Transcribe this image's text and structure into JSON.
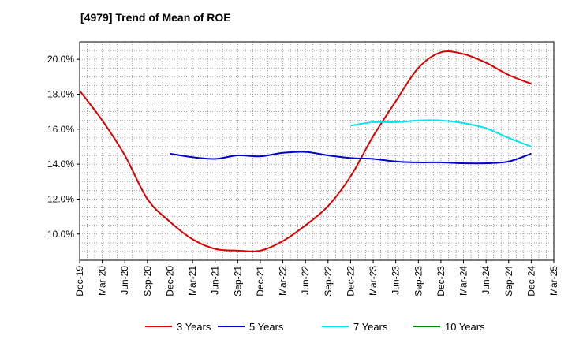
{
  "chart_data": {
    "type": "line",
    "title": "[4979]  Trend of Mean of ROE",
    "xlabel": "",
    "ylabel": "",
    "ylim": [
      8.5,
      21.0
    ],
    "yticks": [
      10.0,
      12.0,
      14.0,
      16.0,
      18.0,
      20.0
    ],
    "ytick_labels": [
      "10.0%",
      "12.0%",
      "14.0%",
      "16.0%",
      "18.0%",
      "20.0%"
    ],
    "x_tick_labels": [
      "Dec-19",
      "Mar-20",
      "Jun-20",
      "Sep-20",
      "Dec-20",
      "Mar-21",
      "Jun-21",
      "Sep-21",
      "Dec-21",
      "Mar-22",
      "Jun-22",
      "Sep-22",
      "Dec-22",
      "Mar-23",
      "Jun-23",
      "Sep-23",
      "Dec-23",
      "Mar-24",
      "Jun-24",
      "Sep-24",
      "Dec-24",
      "Mar-25"
    ],
    "grid": true,
    "legend_position": "bottom",
    "series": [
      {
        "name": "3 Years",
        "color": "#dd0000",
        "points": [
          [
            0,
            18.2
          ],
          [
            1,
            16.5
          ],
          [
            2,
            14.5
          ],
          [
            3,
            12.0
          ],
          [
            4,
            10.7
          ],
          [
            5,
            9.7
          ],
          [
            6,
            9.15
          ],
          [
            7,
            9.05
          ],
          [
            8,
            9.05
          ],
          [
            9,
            9.6
          ],
          [
            10,
            10.5
          ],
          [
            11,
            11.6
          ],
          [
            12,
            13.3
          ],
          [
            13,
            15.6
          ],
          [
            14,
            17.6
          ],
          [
            15,
            19.5
          ],
          [
            16,
            20.4
          ],
          [
            17,
            20.3
          ],
          [
            18,
            19.8
          ],
          [
            19,
            19.1
          ],
          [
            20,
            18.6
          ]
        ]
      },
      {
        "name": "5 Years",
        "color": "#0000cc",
        "points": [
          [
            4,
            14.6
          ],
          [
            5,
            14.4
          ],
          [
            6,
            14.3
          ],
          [
            7,
            14.5
          ],
          [
            8,
            14.45
          ],
          [
            9,
            14.65
          ],
          [
            10,
            14.7
          ],
          [
            11,
            14.5
          ],
          [
            12,
            14.35
          ],
          [
            13,
            14.3
          ],
          [
            14,
            14.15
          ],
          [
            15,
            14.1
          ],
          [
            16,
            14.1
          ],
          [
            17,
            14.05
          ],
          [
            18,
            14.05
          ],
          [
            19,
            14.15
          ],
          [
            20,
            14.6
          ]
        ]
      },
      {
        "name": "7 Years",
        "color": "#00e5ee",
        "points": [
          [
            12,
            16.2
          ],
          [
            13,
            16.4
          ],
          [
            14,
            16.4
          ],
          [
            15,
            16.5
          ],
          [
            16,
            16.5
          ],
          [
            17,
            16.35
          ],
          [
            18,
            16.05
          ],
          [
            19,
            15.5
          ],
          [
            20,
            15.0
          ]
        ]
      },
      {
        "name": "10 Years",
        "color": "#008800",
        "points": []
      }
    ]
  }
}
